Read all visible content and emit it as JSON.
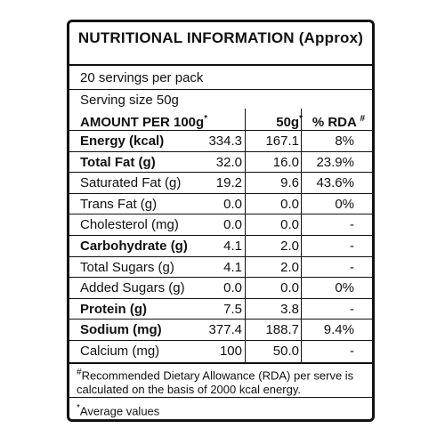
{
  "title": "NUTRITIONAL INFORMATION (Approx)",
  "servings_per_pack": "20 servings per pack",
  "serving_size": "Serving size 50g",
  "header": {
    "amount": "AMOUNT PER 100g",
    "amount_sup": "*",
    "per_serving": "50g",
    "per_serving_sup": "*",
    "rda": "% RDA",
    "rda_sup": "#"
  },
  "rows": [
    {
      "name": "Energy (kcal)",
      "per100": "334.3",
      "per50": "167.1",
      "rda": "8%",
      "bold": true
    },
    {
      "name": "Total Fat (g)",
      "per100": "32.0",
      "per50": "16.0",
      "rda": "23.9%",
      "bold": true
    },
    {
      "name": "Saturated Fat (g)",
      "per100": "19.2",
      "per50": "9.6",
      "rda": "43.6%",
      "bold": false
    },
    {
      "name": "Trans Fat (g)",
      "per100": "0.0",
      "per50": "0.0",
      "rda": "0%",
      "bold": false
    },
    {
      "name": "Cholesterol (mg)",
      "per100": "0.0",
      "per50": "0.0",
      "rda": "-",
      "bold": false
    },
    {
      "name": "Carbohydrate (g)",
      "per100": "4.1",
      "per50": "2.0",
      "rda": "-",
      "bold": true
    },
    {
      "name": "Total Sugars (g)",
      "per100": "4.1",
      "per50": "2.0",
      "rda": "-",
      "bold": false
    },
    {
      "name": "Added Sugars (g)",
      "per100": "0.0",
      "per50": "0.0",
      "rda": "0%",
      "bold": false
    },
    {
      "name": "Protein (g)",
      "per100": "7.5",
      "per50": "3.8",
      "rda": "-",
      "bold": true
    },
    {
      "name": "Sodium (mg)",
      "per100": "377.4",
      "per50": "188.7",
      "rda": "9.4%",
      "bold": true
    },
    {
      "name": "Calcium (mg)",
      "per100": "100",
      "per50": "50.0",
      "rda": "-",
      "bold": false
    }
  ],
  "footnote_rda_mark": "#",
  "footnote_rda": "Recommended Dietary Allowance (RDA) per serve is calculated on the basis of 2000 kcal energy.",
  "footnote_avg_mark": "*",
  "footnote_avg": "Average values"
}
